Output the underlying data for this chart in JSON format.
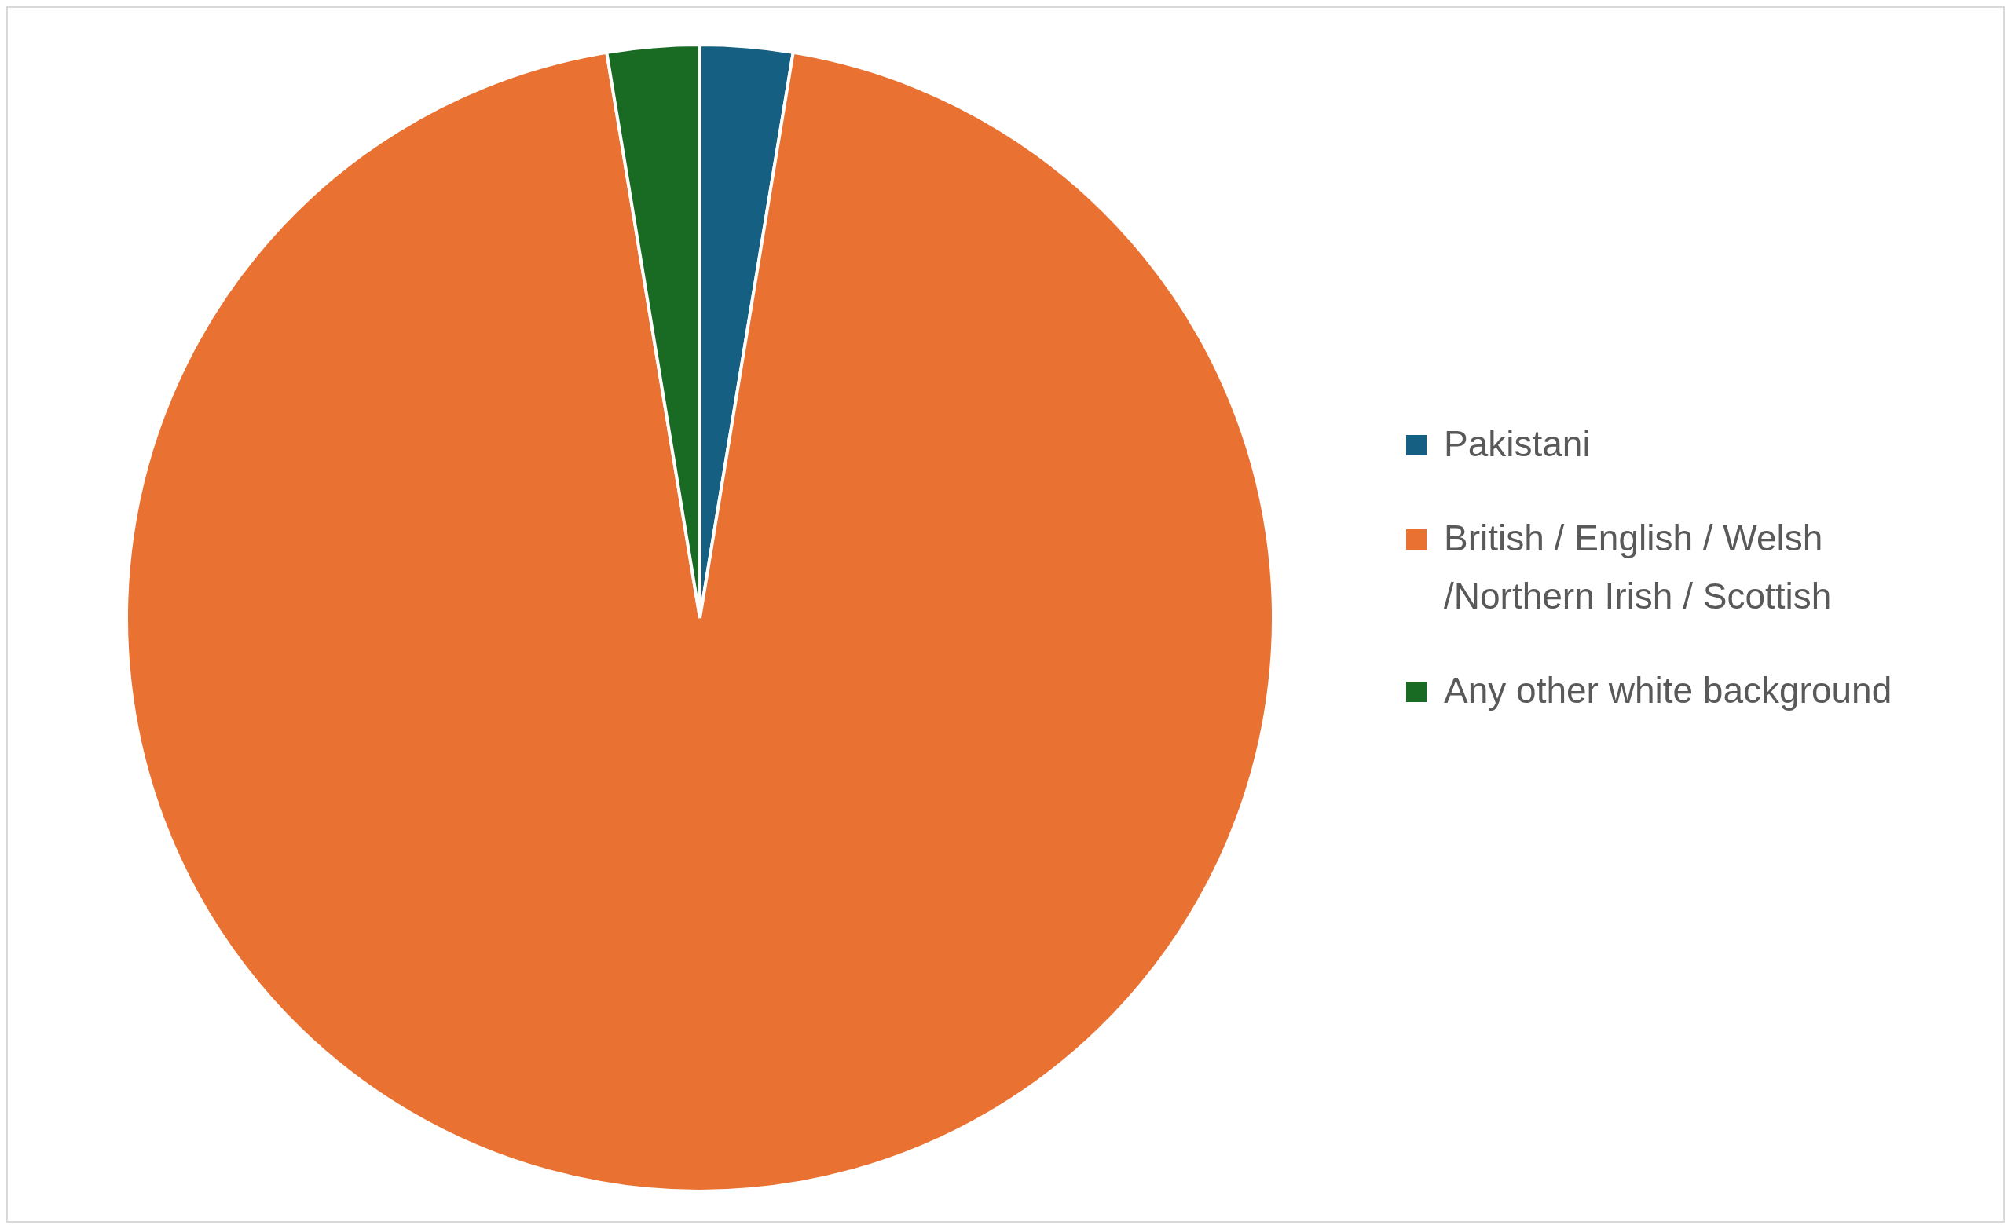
{
  "chart_data": {
    "type": "pie",
    "categories": [
      "Pakistani",
      "British / English / Welsh /Northern Irish / Scottish",
      "Any other white background"
    ],
    "values": [
      2.6,
      94.8,
      2.6
    ],
    "colors": [
      "#156082",
      "#e97132",
      "#196b24"
    ],
    "legend": "right"
  }
}
